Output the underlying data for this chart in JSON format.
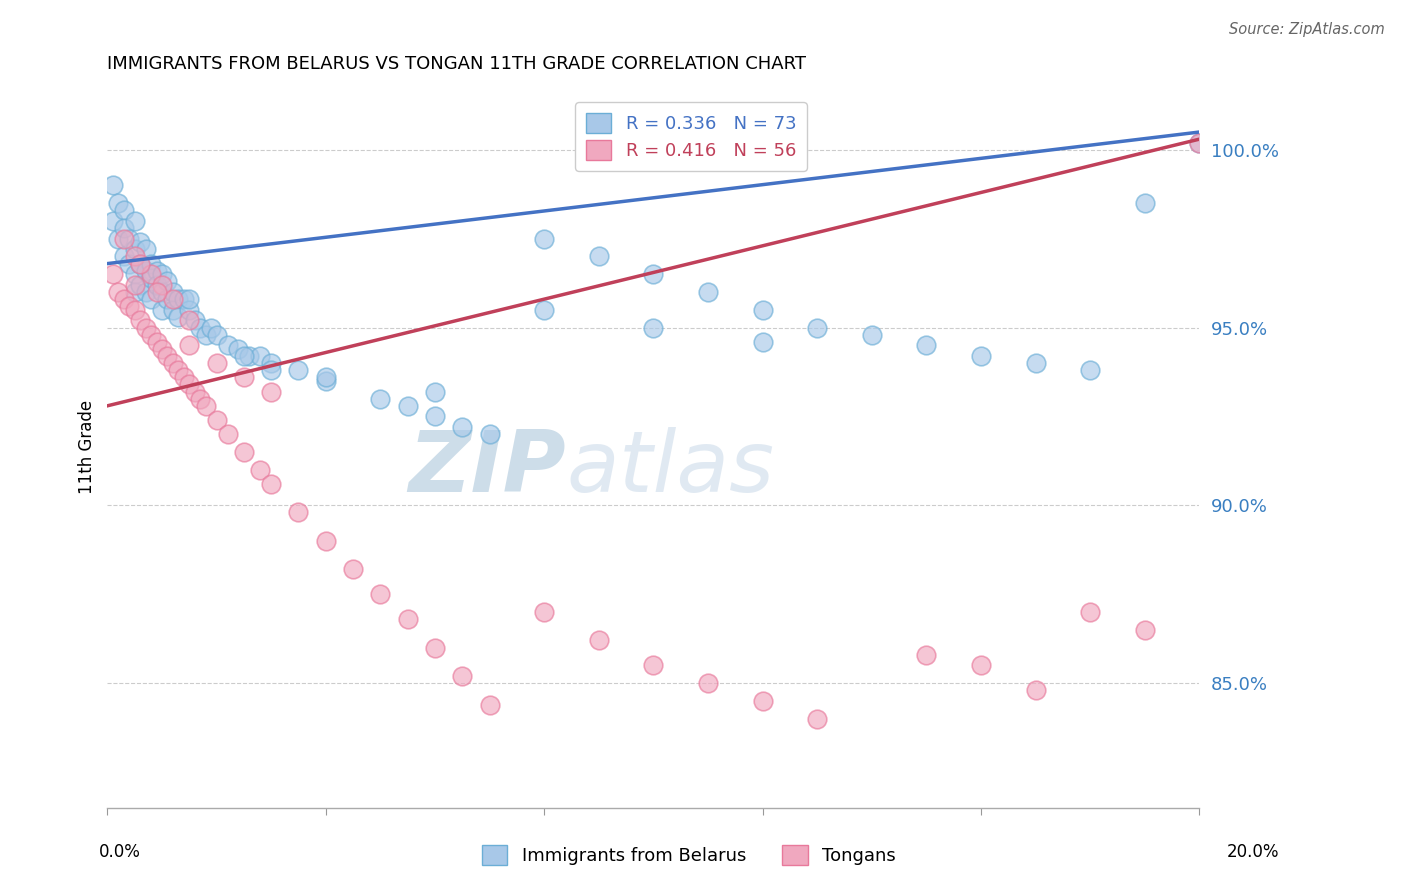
{
  "title": "IMMIGRANTS FROM BELARUS VS TONGAN 11TH GRADE CORRELATION CHART",
  "source": "Source: ZipAtlas.com",
  "ylabel": "11th Grade",
  "ylabel_ticks": [
    "100.0%",
    "95.0%",
    "90.0%",
    "85.0%"
  ],
  "ylabel_tick_values": [
    1.0,
    0.95,
    0.9,
    0.85
  ],
  "xmin": 0.0,
  "xmax": 0.2,
  "ymin": 0.815,
  "ymax": 1.018,
  "legend1_label": "R = 0.336   N = 73",
  "legend2_label": "R = 0.416   N = 56",
  "legend1_color": "#6baed6",
  "legend2_color": "#e8799b",
  "trend1_color": "#4472c4",
  "trend2_color": "#c0405a",
  "scatter1_color": "#a8c8e8",
  "scatter2_color": "#f0a8bf",
  "watermark_zip": "ZIP",
  "watermark_atlas": "atlas",
  "blue_trend_x0": 0.0,
  "blue_trend_y0": 0.968,
  "blue_trend_x1": 0.2,
  "blue_trend_y1": 1.005,
  "pink_trend_x0": 0.0,
  "pink_trend_y0": 0.928,
  "pink_trend_x1": 0.2,
  "pink_trend_y1": 1.003,
  "blue_x": [
    0.001,
    0.001,
    0.002,
    0.002,
    0.003,
    0.003,
    0.003,
    0.004,
    0.004,
    0.005,
    0.005,
    0.005,
    0.005,
    0.006,
    0.006,
    0.006,
    0.007,
    0.007,
    0.007,
    0.008,
    0.008,
    0.008,
    0.009,
    0.009,
    0.01,
    0.01,
    0.01,
    0.011,
    0.011,
    0.012,
    0.012,
    0.013,
    0.013,
    0.014,
    0.015,
    0.016,
    0.017,
    0.018,
    0.019,
    0.02,
    0.022,
    0.024,
    0.026,
    0.028,
    0.03,
    0.035,
    0.04,
    0.05,
    0.055,
    0.06,
    0.065,
    0.07,
    0.08,
    0.09,
    0.1,
    0.11,
    0.12,
    0.13,
    0.14,
    0.15,
    0.16,
    0.17,
    0.18,
    0.19,
    0.2,
    0.08,
    0.1,
    0.12,
    0.06,
    0.04,
    0.03,
    0.025,
    0.015
  ],
  "blue_y": [
    0.99,
    0.98,
    0.985,
    0.975,
    0.983,
    0.978,
    0.97,
    0.975,
    0.968,
    0.98,
    0.972,
    0.965,
    0.96,
    0.974,
    0.968,
    0.962,
    0.972,
    0.966,
    0.96,
    0.968,
    0.964,
    0.958,
    0.966,
    0.962,
    0.965,
    0.96,
    0.955,
    0.963,
    0.958,
    0.96,
    0.955,
    0.958,
    0.953,
    0.958,
    0.955,
    0.952,
    0.95,
    0.948,
    0.95,
    0.948,
    0.945,
    0.944,
    0.942,
    0.942,
    0.94,
    0.938,
    0.935,
    0.93,
    0.928,
    0.925,
    0.922,
    0.92,
    0.975,
    0.97,
    0.965,
    0.96,
    0.955,
    0.95,
    0.948,
    0.945,
    0.942,
    0.94,
    0.938,
    0.985,
    1.002,
    0.955,
    0.95,
    0.946,
    0.932,
    0.936,
    0.938,
    0.942,
    0.958
  ],
  "pink_x": [
    0.001,
    0.002,
    0.003,
    0.004,
    0.005,
    0.005,
    0.006,
    0.007,
    0.008,
    0.009,
    0.01,
    0.011,
    0.012,
    0.013,
    0.014,
    0.015,
    0.016,
    0.017,
    0.018,
    0.02,
    0.022,
    0.025,
    0.028,
    0.03,
    0.035,
    0.04,
    0.045,
    0.05,
    0.055,
    0.06,
    0.065,
    0.07,
    0.08,
    0.09,
    0.1,
    0.11,
    0.12,
    0.13,
    0.15,
    0.16,
    0.17,
    0.18,
    0.19,
    0.2,
    0.005,
    0.008,
    0.01,
    0.012,
    0.015,
    0.003,
    0.006,
    0.009,
    0.015,
    0.02,
    0.025,
    0.03
  ],
  "pink_y": [
    0.965,
    0.96,
    0.958,
    0.956,
    0.962,
    0.955,
    0.952,
    0.95,
    0.948,
    0.946,
    0.944,
    0.942,
    0.94,
    0.938,
    0.936,
    0.934,
    0.932,
    0.93,
    0.928,
    0.924,
    0.92,
    0.915,
    0.91,
    0.906,
    0.898,
    0.89,
    0.882,
    0.875,
    0.868,
    0.86,
    0.852,
    0.844,
    0.87,
    0.862,
    0.855,
    0.85,
    0.845,
    0.84,
    0.858,
    0.855,
    0.848,
    0.87,
    0.865,
    1.002,
    0.97,
    0.965,
    0.962,
    0.958,
    0.952,
    0.975,
    0.968,
    0.96,
    0.945,
    0.94,
    0.936,
    0.932
  ]
}
